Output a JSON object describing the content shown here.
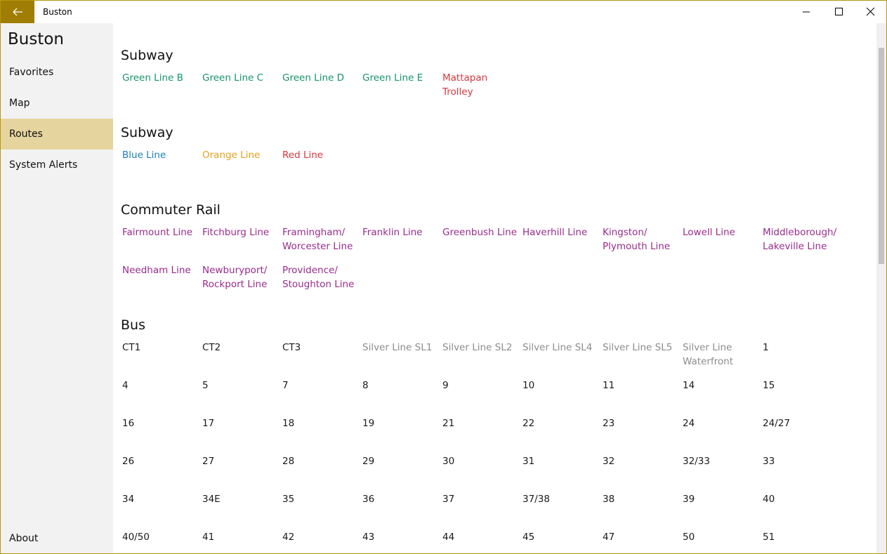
{
  "window": {
    "title": "Buston"
  },
  "sidebar": {
    "title": "Buston",
    "items": [
      "Favorites",
      "Map",
      "Routes",
      "System Alerts"
    ],
    "selected": 2,
    "footer": "About"
  },
  "sections": [
    {
      "title": "Subway",
      "color": "#16946a",
      "routes": [
        {
          "name": "Green Line B"
        },
        {
          "name": "Green Line C"
        },
        {
          "name": "Green Line D"
        },
        {
          "name": "Green Line E"
        },
        {
          "name": "Mattapan Trolley",
          "color": "#d8363b"
        }
      ]
    },
    {
      "title": "Subway",
      "color": "#1b7fb5",
      "routes": [
        {
          "name": "Blue Line"
        },
        {
          "name": "Orange Line",
          "color": "#e8a01a"
        },
        {
          "name": "Red Line",
          "color": "#d8363b"
        }
      ]
    },
    {
      "title": "Commuter Rail",
      "color": "#9a2b8c",
      "routes": [
        {
          "name": "Fairmount Line"
        },
        {
          "name": "Fitchburg Line"
        },
        {
          "name": "Framingham/Worcester Line"
        },
        {
          "name": "Franklin Line"
        },
        {
          "name": "Greenbush Line"
        },
        {
          "name": "Haverhill Line"
        },
        {
          "name": "Kingston/Plymouth Line"
        },
        {
          "name": "Lowell Line"
        },
        {
          "name": "Middleborough/Lakeville Line"
        },
        {
          "name": "Needham Line"
        },
        {
          "name": "Newburyport/Rockport Line"
        },
        {
          "name": "Providence/Stoughton Line"
        }
      ]
    },
    {
      "title": "Bus",
      "color": "#1a1a1a",
      "routes": [
        {
          "name": "CT1"
        },
        {
          "name": "CT2"
        },
        {
          "name": "CT3"
        },
        {
          "name": "Silver Line SL1",
          "color": "#8c8c8c"
        },
        {
          "name": "Silver Line SL2",
          "color": "#8c8c8c"
        },
        {
          "name": "Silver Line SL4",
          "color": "#8c8c8c"
        },
        {
          "name": "Silver Line SL5",
          "color": "#8c8c8c"
        },
        {
          "name": "Silver Line Waterfront",
          "color": "#8c8c8c"
        },
        {
          "name": "1"
        },
        {
          "name": "4"
        },
        {
          "name": "5"
        },
        {
          "name": "7"
        },
        {
          "name": "8"
        },
        {
          "name": "9"
        },
        {
          "name": "10"
        },
        {
          "name": "11"
        },
        {
          "name": "14"
        },
        {
          "name": "15"
        },
        {
          "name": "16"
        },
        {
          "name": "17"
        },
        {
          "name": "18"
        },
        {
          "name": "19"
        },
        {
          "name": "21"
        },
        {
          "name": "22"
        },
        {
          "name": "23"
        },
        {
          "name": "24"
        },
        {
          "name": "24/27"
        },
        {
          "name": "26"
        },
        {
          "name": "27"
        },
        {
          "name": "28"
        },
        {
          "name": "29"
        },
        {
          "name": "30"
        },
        {
          "name": "31"
        },
        {
          "name": "32"
        },
        {
          "name": "32/33"
        },
        {
          "name": "33"
        },
        {
          "name": "34"
        },
        {
          "name": "34E"
        },
        {
          "name": "35"
        },
        {
          "name": "36"
        },
        {
          "name": "37"
        },
        {
          "name": "37/38"
        },
        {
          "name": "38"
        },
        {
          "name": "39"
        },
        {
          "name": "40"
        },
        {
          "name": "40/50"
        },
        {
          "name": "41"
        },
        {
          "name": "42"
        },
        {
          "name": "43"
        },
        {
          "name": "44"
        },
        {
          "name": "45"
        },
        {
          "name": "47"
        },
        {
          "name": "50"
        },
        {
          "name": "51"
        }
      ]
    }
  ]
}
